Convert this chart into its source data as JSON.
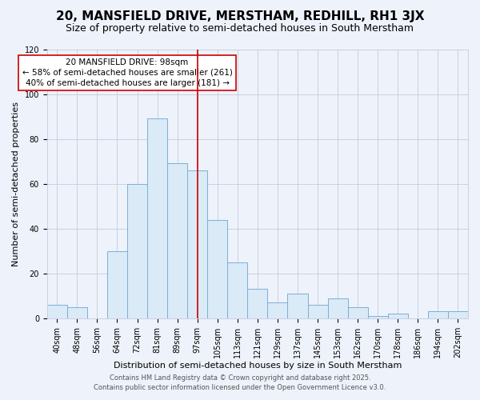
{
  "title": "20, MANSFIELD DRIVE, MERSTHAM, REDHILL, RH1 3JX",
  "subtitle": "Size of property relative to semi-detached houses in South Merstham",
  "xlabel": "Distribution of semi-detached houses by size in South Merstham",
  "ylabel": "Number of semi-detached properties",
  "bar_labels": [
    "40sqm",
    "48sqm",
    "56sqm",
    "64sqm",
    "72sqm",
    "81sqm",
    "89sqm",
    "97sqm",
    "105sqm",
    "113sqm",
    "121sqm",
    "129sqm",
    "137sqm",
    "145sqm",
    "153sqm",
    "162sqm",
    "170sqm",
    "178sqm",
    "186sqm",
    "194sqm",
    "202sqm"
  ],
  "bar_heights": [
    6,
    5,
    0,
    30,
    60,
    89,
    69,
    66,
    44,
    25,
    13,
    7,
    11,
    6,
    9,
    5,
    1,
    2,
    0,
    3,
    3
  ],
  "bar_color": "#daeaf7",
  "bar_edge_color": "#7ab0d8",
  "vline_x_index": 7,
  "vline_color": "#cc0000",
  "annotation_title": "20 MANSFIELD DRIVE: 98sqm",
  "annotation_line1": "← 58% of semi-detached houses are smaller (261)",
  "annotation_line2": "40% of semi-detached houses are larger (181) →",
  "annotation_box_color": "#ffffff",
  "annotation_box_edge": "#cc0000",
  "ylim": [
    0,
    120
  ],
  "yticks": [
    0,
    20,
    40,
    60,
    80,
    100,
    120
  ],
  "footnote1": "Contains HM Land Registry data © Crown copyright and database right 2025.",
  "footnote2": "Contains public sector information licensed under the Open Government Licence v3.0.",
  "bg_color": "#eef2fb",
  "plot_bg_color": "#eef2fb",
  "grid_color": "#c8d0e0",
  "title_fontsize": 11,
  "subtitle_fontsize": 9,
  "axis_label_fontsize": 8,
  "tick_fontsize": 7,
  "annotation_fontsize": 7.5,
  "footnote_fontsize": 6
}
